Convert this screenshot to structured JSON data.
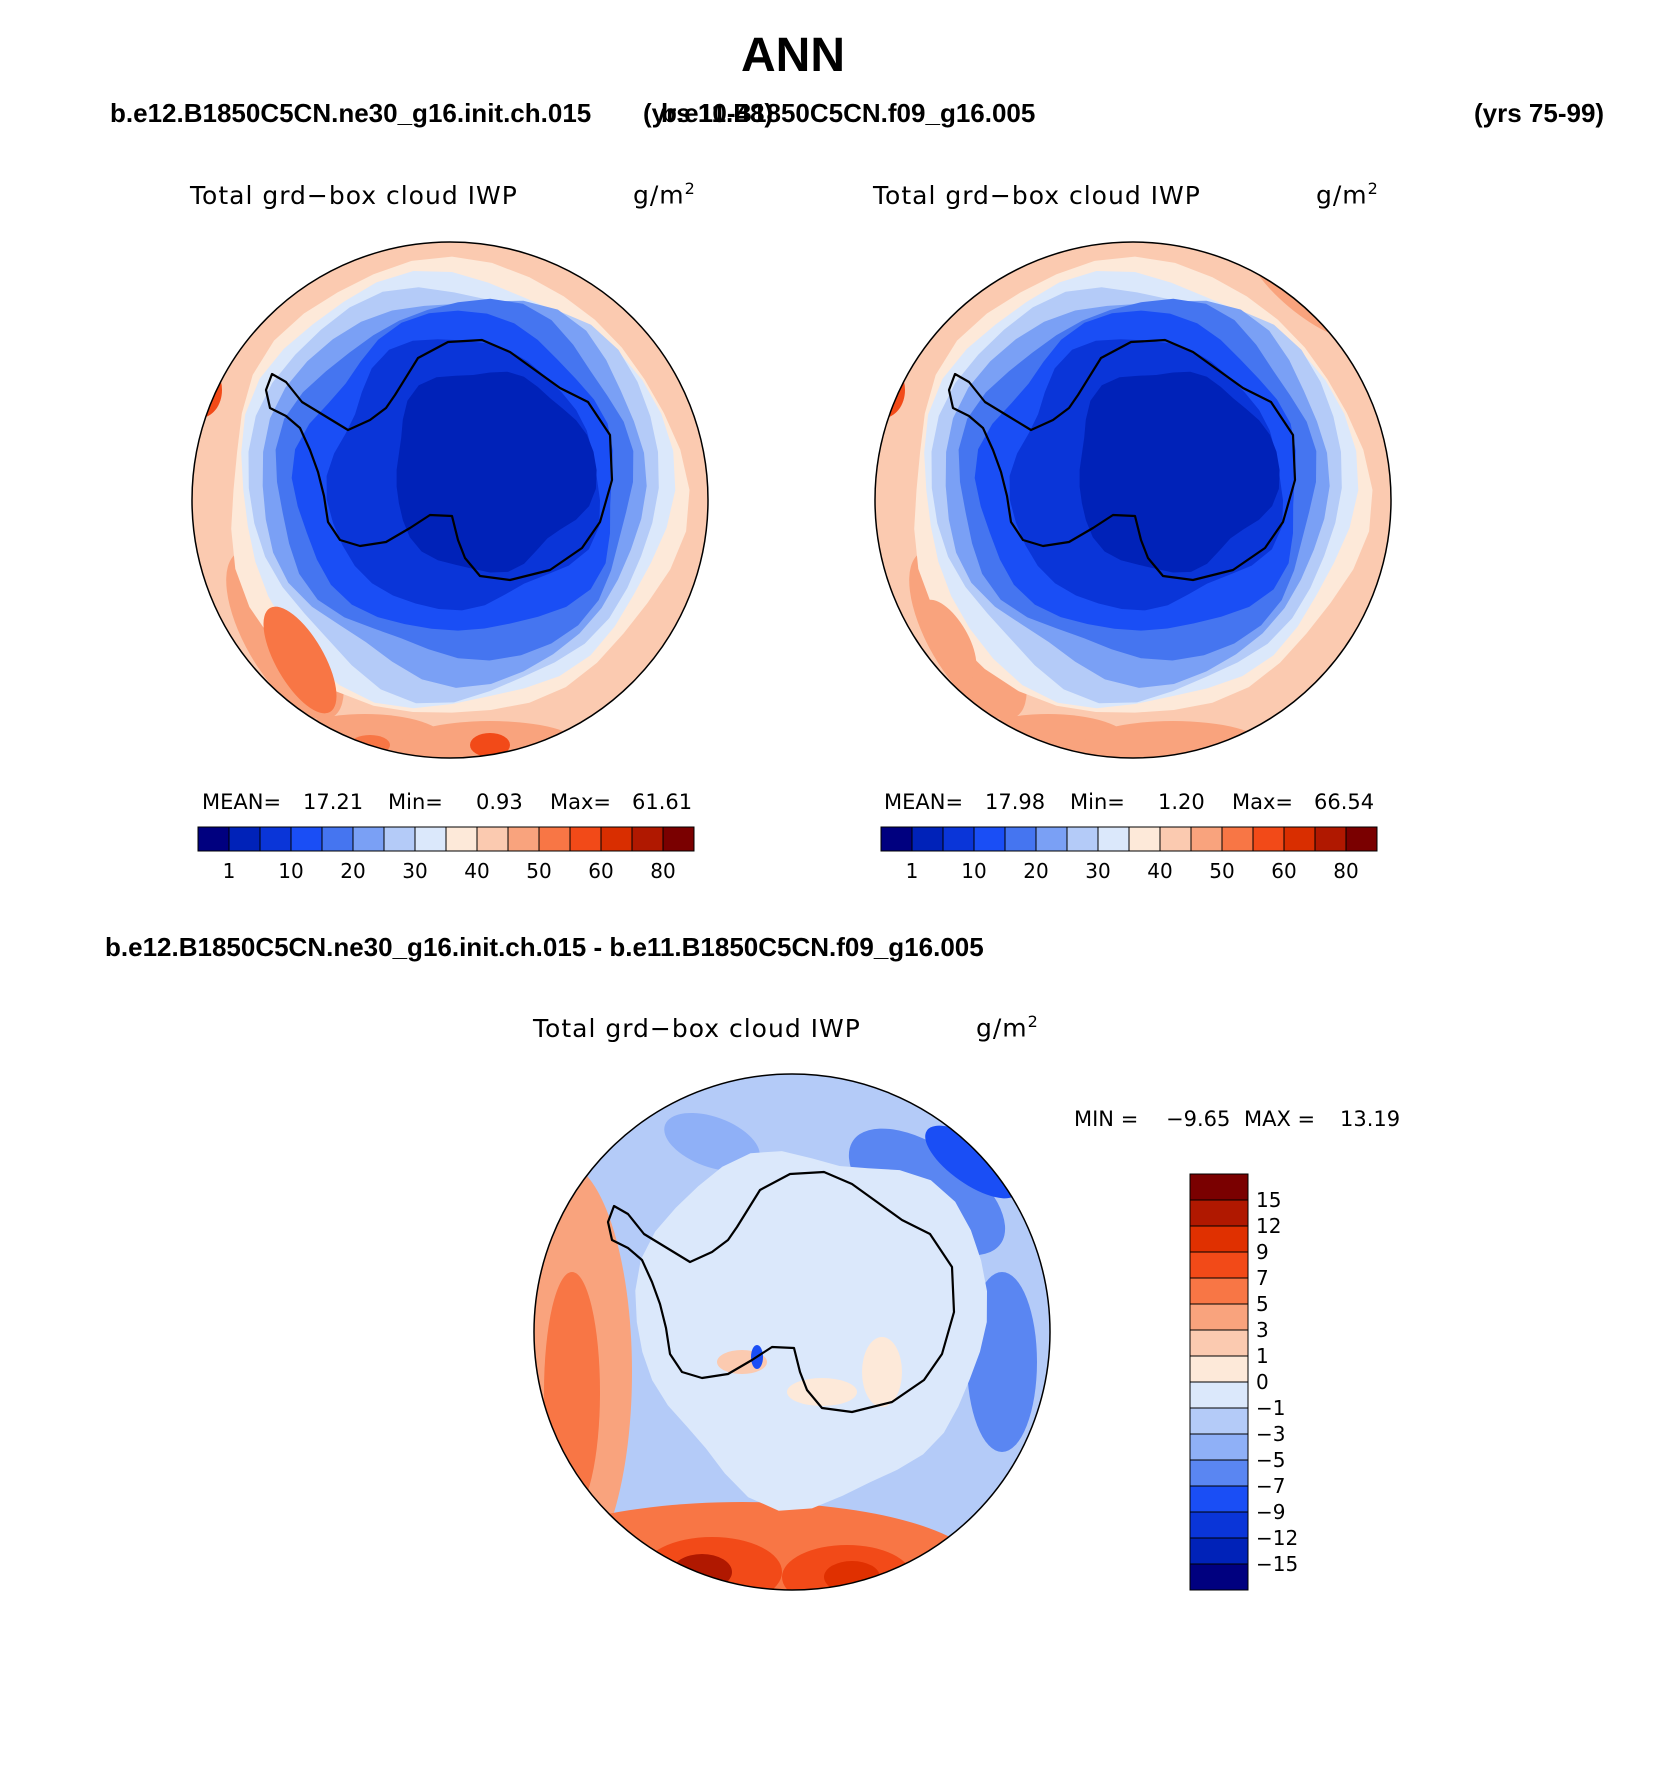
{
  "title": "ANN",
  "header": {
    "left_case": "b.e12.B1850C5CN.ne30_g16.init.ch.015",
    "left_years": "(yrs 10-48)",
    "right_case": "b.e11.B1850C5CN.f09_g16.005",
    "right_years": "(yrs 75-99)",
    "diff_label": "b.e12.B1850C5CN.ne30_g16.init.ch.015 - b.e11.B1850C5CN.f09_g16.005"
  },
  "colors": {
    "main_scale": [
      "#00007f",
      "#0022b8",
      "#0a35d8",
      "#1a4ef5",
      "#4575f0",
      "#7aa0f5",
      "#b4cbf8",
      "#dbe8fb",
      "#fde9d9",
      "#fbcab0",
      "#f9a37d",
      "#f87645",
      "#f24a18",
      "#d92e00",
      "#b01800",
      "#7a0000"
    ],
    "diff_scale": [
      "#7a0000",
      "#b01800",
      "#e03000",
      "#f24a18",
      "#f87645",
      "#f9a37d",
      "#fbcab0",
      "#fde9d9",
      "#dbe8fb",
      "#b4cbf8",
      "#8fb0f7",
      "#5a86f2",
      "#1a4ef5",
      "#0a35d8",
      "#0022b8",
      "#00007f"
    ],
    "land_outline": "#000000"
  },
  "chart_data": [
    {
      "type": "heatmap",
      "projection": "south-polar-stereographic",
      "title": "Total grd−box cloud IWP",
      "units": "g/m2",
      "stats": {
        "mean_label": "MEAN=",
        "mean": "17.21",
        "min_label": "Min=",
        "min": "0.93",
        "max_label": "Max=",
        "max": "61.61"
      },
      "colorbar_ticks": [
        "1",
        "10",
        "20",
        "30",
        "40",
        "50",
        "60",
        "80"
      ]
    },
    {
      "type": "heatmap",
      "projection": "south-polar-stereographic",
      "title": "Total grd−box cloud IWP",
      "units": "g/m2",
      "stats": {
        "mean_label": "MEAN=",
        "mean": "17.98",
        "min_label": "Min=",
        "min": "1.20",
        "max_label": "Max=",
        "max": "66.54"
      },
      "colorbar_ticks": [
        "1",
        "10",
        "20",
        "30",
        "40",
        "50",
        "60",
        "80"
      ]
    },
    {
      "type": "heatmap",
      "projection": "south-polar-stereographic",
      "title": "Total grd−box cloud IWP",
      "units": "g/m2",
      "stats": {
        "min_label": "MIN =",
        "min": "−9.65",
        "max_label": "MAX =",
        "max": "13.19"
      },
      "colorbar_ticks": [
        "15",
        "12",
        "9",
        "7",
        "5",
        "3",
        "1",
        "0",
        "−1",
        "−3",
        "−5",
        "−7",
        "−9",
        "−12",
        "−15"
      ]
    }
  ]
}
